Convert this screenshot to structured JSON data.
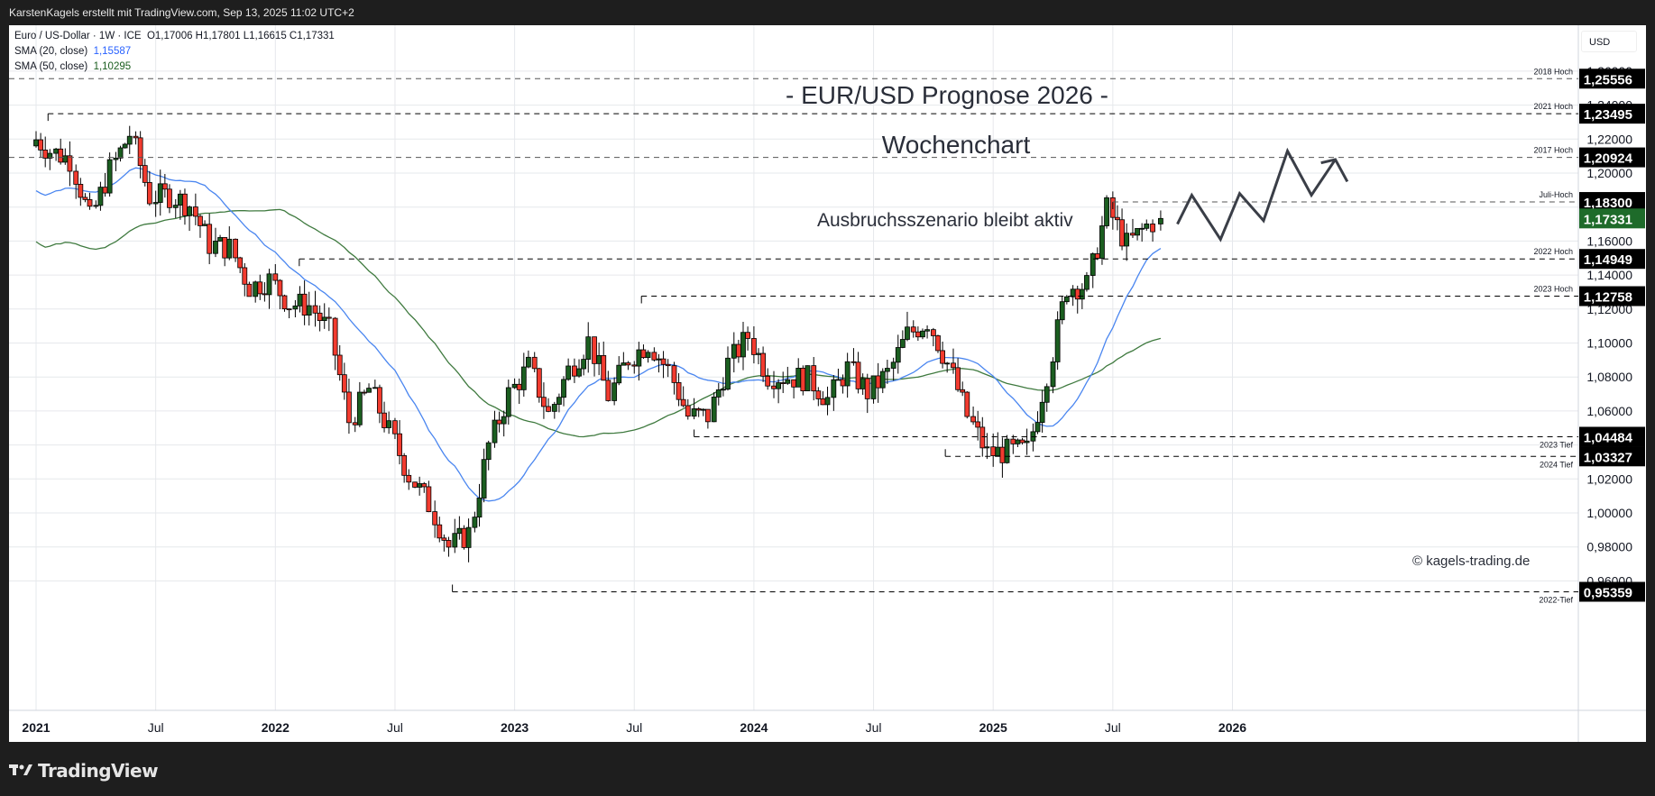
{
  "header": {
    "attribution": "KarstenKagels erstellt mit TradingView.com, Sep 13, 2025 11:02 UTC+2"
  },
  "legend": {
    "symbol_line": "Euro / US-Dollar · 1W · ICE",
    "ohlc": "O1,17006  H1,17801  L1,16615  C1,17331",
    "sma20_label": "SMA (20, close)",
    "sma20_value": "1,15587",
    "sma50_label": "SMA (50, close)",
    "sma50_value": "1,10295"
  },
  "price_axis": {
    "currency": "USD"
  },
  "footer": {
    "brand": "TradingView"
  },
  "annotations": {
    "title": "- EUR/USD Prognose 2026 -",
    "subtitle": "Wochenchart",
    "scenario": "Ausbruchsszenario bleibt aktiv",
    "copyright": "© kagels-trading.de"
  },
  "colors": {
    "up": "#1b5e20",
    "down": "#f23b2f",
    "sma20": "#4a86f0",
    "sma50": "#3f7a3f",
    "last_price_bg": "#1e6b2a",
    "level_bg": "#000000",
    "grid": "#e6e8ec"
  },
  "chart_data": {
    "type": "candlestick",
    "title": "- EUR/USD Prognose 2026 -",
    "subtitle": "Wochenchart",
    "symbol": "Euro / US-Dollar",
    "interval": "1W",
    "exchange": "ICE",
    "last": {
      "open": 1.17006,
      "high": 1.17801,
      "low": 1.16615,
      "close": 1.17331
    },
    "ylabel": "USD",
    "ylim": [
      0.945,
      1.272
    ],
    "y_ticks": [
      "0,96000",
      "0,98000",
      "1,00000",
      "1,02000",
      "1,04000",
      "1,06000",
      "1,08000",
      "1,10000",
      "1,12000",
      "1,14000",
      "1,16000",
      "1,18000",
      "1,20000",
      "1,22000",
      "1,24000",
      "1,26000"
    ],
    "x_ticks": [
      "2021",
      "Jul",
      "2022",
      "Jul",
      "2023",
      "Jul",
      "2024",
      "Jul",
      "2025",
      "Jul",
      "2026"
    ],
    "grid": true,
    "indicators": [
      {
        "name": "SMA (20, close)",
        "value": 1.15587,
        "color": "#2962ff"
      },
      {
        "name": "SMA (50, close)",
        "value": 1.10295,
        "color": "#1b5e20"
      }
    ],
    "levels": [
      {
        "label": "2018 Hoch",
        "value": "1,25556"
      },
      {
        "label": "2021 Hoch",
        "value": "1,23495"
      },
      {
        "label": "2017 Hoch",
        "value": "1,20924"
      },
      {
        "label": "Juli-Hoch",
        "value": "1,18300"
      },
      {
        "label": "2022 Hoch",
        "value": "1,14949"
      },
      {
        "label": "2023 Hoch",
        "value": "1,12758"
      },
      {
        "label": "2023 Tief",
        "value": "1,04484"
      },
      {
        "label": "2024 Tief",
        "value": "1,03327"
      },
      {
        "label": "2022-Tief",
        "value": "0,95359"
      }
    ],
    "last_price_label": "1,17331",
    "closes_monthly_approx": [
      {
        "t": "2021-01",
        "c": 1.213
      },
      {
        "t": "2021-02",
        "c": 1.208
      },
      {
        "t": "2021-03",
        "c": 1.173
      },
      {
        "t": "2021-04",
        "c": 1.202
      },
      {
        "t": "2021-05",
        "c": 1.223
      },
      {
        "t": "2021-06",
        "c": 1.186
      },
      {
        "t": "2021-07",
        "c": 1.187
      },
      {
        "t": "2021-08",
        "c": 1.181
      },
      {
        "t": "2021-09",
        "c": 1.158
      },
      {
        "t": "2021-10",
        "c": 1.156
      },
      {
        "t": "2021-11",
        "c": 1.133
      },
      {
        "t": "2021-12",
        "c": 1.137
      },
      {
        "t": "2022-01",
        "c": 1.123
      },
      {
        "t": "2022-02",
        "c": 1.122
      },
      {
        "t": "2022-03",
        "c": 1.107
      },
      {
        "t": "2022-04",
        "c": 1.054
      },
      {
        "t": "2022-05",
        "c": 1.073
      },
      {
        "t": "2022-06",
        "c": 1.048
      },
      {
        "t": "2022-07",
        "c": 1.022
      },
      {
        "t": "2022-08",
        "c": 1.005
      },
      {
        "t": "2022-09",
        "c": 0.98
      },
      {
        "t": "2022-10",
        "c": 0.988
      },
      {
        "t": "2022-11",
        "c": 1.04
      },
      {
        "t": "2022-12",
        "c": 1.07
      },
      {
        "t": "2023-01",
        "c": 1.086
      },
      {
        "t": "2023-02",
        "c": 1.058
      },
      {
        "t": "2023-03",
        "c": 1.084
      },
      {
        "t": "2023-04",
        "c": 1.101
      },
      {
        "t": "2023-05",
        "c": 1.069
      },
      {
        "t": "2023-06",
        "c": 1.091
      },
      {
        "t": "2023-07",
        "c": 1.1
      },
      {
        "t": "2023-08",
        "c": 1.084
      },
      {
        "t": "2023-09",
        "c": 1.057
      },
      {
        "t": "2023-10",
        "c": 1.057
      },
      {
        "t": "2023-11",
        "c": 1.088
      },
      {
        "t": "2023-12",
        "c": 1.104
      },
      {
        "t": "2024-01",
        "c": 1.081
      },
      {
        "t": "2024-02",
        "c": 1.08
      },
      {
        "t": "2024-03",
        "c": 1.079
      },
      {
        "t": "2024-04",
        "c": 1.067
      },
      {
        "t": "2024-05",
        "c": 1.085
      },
      {
        "t": "2024-06",
        "c": 1.071
      },
      {
        "t": "2024-07",
        "c": 1.082
      },
      {
        "t": "2024-08",
        "c": 1.105
      },
      {
        "t": "2024-09",
        "c": 1.113
      },
      {
        "t": "2024-10",
        "c": 1.088
      },
      {
        "t": "2024-11",
        "c": 1.057
      },
      {
        "t": "2024-12",
        "c": 1.035
      },
      {
        "t": "2025-01",
        "c": 1.036
      },
      {
        "t": "2025-02",
        "c": 1.037
      },
      {
        "t": "2025-03",
        "c": 1.082
      },
      {
        "t": "2025-04",
        "c": 1.133
      },
      {
        "t": "2025-05",
        "c": 1.134
      },
      {
        "t": "2025-06",
        "c": 1.179
      },
      {
        "t": "2025-07",
        "c": 1.158
      },
      {
        "t": "2025-08",
        "c": 1.169
      },
      {
        "t": "2025-09",
        "c": 1.173
      }
    ],
    "forecast_path": "zigzag projection upward from ~1.17 toward ~1.21 with arrow (2025-Q4 to 2026)"
  }
}
